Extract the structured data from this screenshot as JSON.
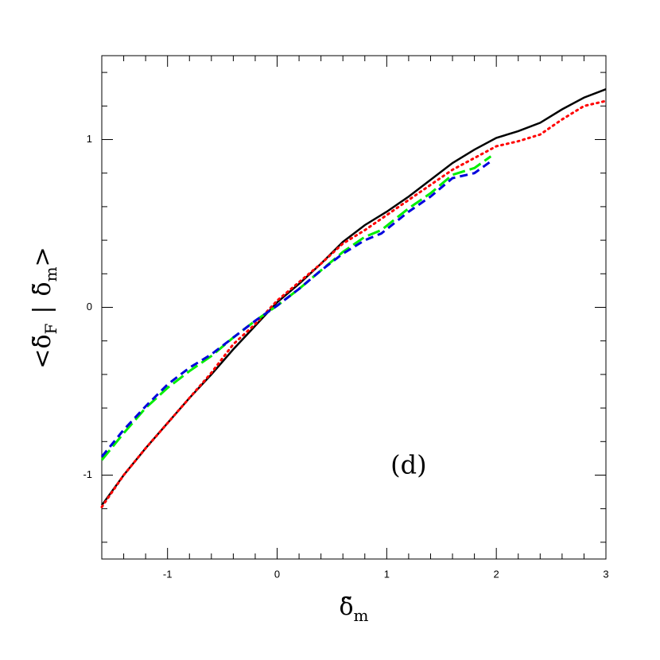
{
  "chart_data": {
    "type": "line",
    "x_label": {
      "symbol": "δ̃",
      "subscript": "m"
    },
    "y_label": {
      "open": "<",
      "symbol": "δ̃",
      "subscript": "F",
      "bar": "|",
      "symbol2": "δ̃",
      "subscript2": "m",
      "close": ">"
    },
    "annotation": {
      "text": "(d)",
      "x": 1.2,
      "y": -0.95
    },
    "xlim": [
      -1.6,
      3
    ],
    "ylim": [
      -1.5,
      1.5
    ],
    "xticks": [
      -1,
      0,
      1,
      2,
      3
    ],
    "yticks": [
      -1,
      0,
      1
    ],
    "xminorticks": [
      -1.4,
      -1.2,
      -0.8,
      -0.6,
      -0.4,
      -0.2,
      0.2,
      0.4,
      0.6,
      0.8,
      1.2,
      1.4,
      1.6,
      1.8,
      2.2,
      2.4,
      2.6,
      2.8
    ],
    "yminorticks": [
      -1.4,
      -1.2,
      -0.8,
      -0.6,
      -0.4,
      -0.2,
      0.2,
      0.4,
      0.6,
      0.8,
      1.2,
      1.4
    ],
    "series": [
      {
        "color": "#000000",
        "style": "solid",
        "x": [
          -1.6,
          -1.4,
          -1.2,
          -1.0,
          -0.8,
          -0.6,
          -0.4,
          -0.2,
          0,
          0.2,
          0.4,
          0.6,
          0.8,
          1.0,
          1.2,
          1.4,
          1.6,
          1.8,
          2.0,
          2.2,
          2.4,
          2.6,
          2.8,
          3.0
        ],
        "values": [
          -1.18,
          -1.0,
          -0.84,
          -0.69,
          -0.54,
          -0.4,
          -0.25,
          -0.11,
          0.03,
          0.14,
          0.26,
          0.39,
          0.49,
          0.57,
          0.66,
          0.76,
          0.86,
          0.94,
          1.01,
          1.05,
          1.1,
          1.18,
          1.25,
          1.3
        ]
      },
      {
        "color": "#ff0000",
        "style": "dotted",
        "x": [
          -1.6,
          -1.4,
          -1.2,
          -1.0,
          -0.8,
          -0.6,
          -0.4,
          -0.2,
          0,
          0.2,
          0.4,
          0.6,
          0.8,
          1.0,
          1.2,
          1.4,
          1.6,
          1.8,
          2.0,
          2.2,
          2.4,
          2.6,
          2.8,
          3.0
        ],
        "values": [
          -1.19,
          -1.0,
          -0.84,
          -0.69,
          -0.54,
          -0.39,
          -0.22,
          -0.1,
          0.04,
          0.15,
          0.26,
          0.38,
          0.46,
          0.55,
          0.64,
          0.73,
          0.82,
          0.89,
          0.96,
          0.99,
          1.03,
          1.12,
          1.2,
          1.23
        ]
      },
      {
        "color": "#00ee00",
        "style": "longdash",
        "x": [
          -1.6,
          -1.4,
          -1.2,
          -1.0,
          -0.8,
          -0.6,
          -0.4,
          -0.2,
          0,
          0.2,
          0.4,
          0.6,
          0.8,
          0.95,
          1.2,
          1.4,
          1.6,
          1.8,
          1.95
        ],
        "values": [
          -0.91,
          -0.75,
          -0.6,
          -0.48,
          -0.38,
          -0.29,
          -0.18,
          -0.08,
          0.01,
          0.11,
          0.22,
          0.33,
          0.42,
          0.46,
          0.59,
          0.68,
          0.79,
          0.83,
          0.9
        ]
      },
      {
        "color": "#0000dd",
        "style": "dashed",
        "x": [
          -1.6,
          -1.4,
          -1.2,
          -1.0,
          -0.8,
          -0.6,
          -0.4,
          -0.2,
          0,
          0.2,
          0.4,
          0.6,
          0.8,
          0.95,
          1.2,
          1.4,
          1.6,
          1.8,
          1.95
        ],
        "values": [
          -0.89,
          -0.73,
          -0.59,
          -0.46,
          -0.36,
          -0.28,
          -0.18,
          -0.08,
          0.01,
          0.11,
          0.22,
          0.32,
          0.4,
          0.44,
          0.57,
          0.66,
          0.77,
          0.8,
          0.87
        ]
      }
    ]
  }
}
